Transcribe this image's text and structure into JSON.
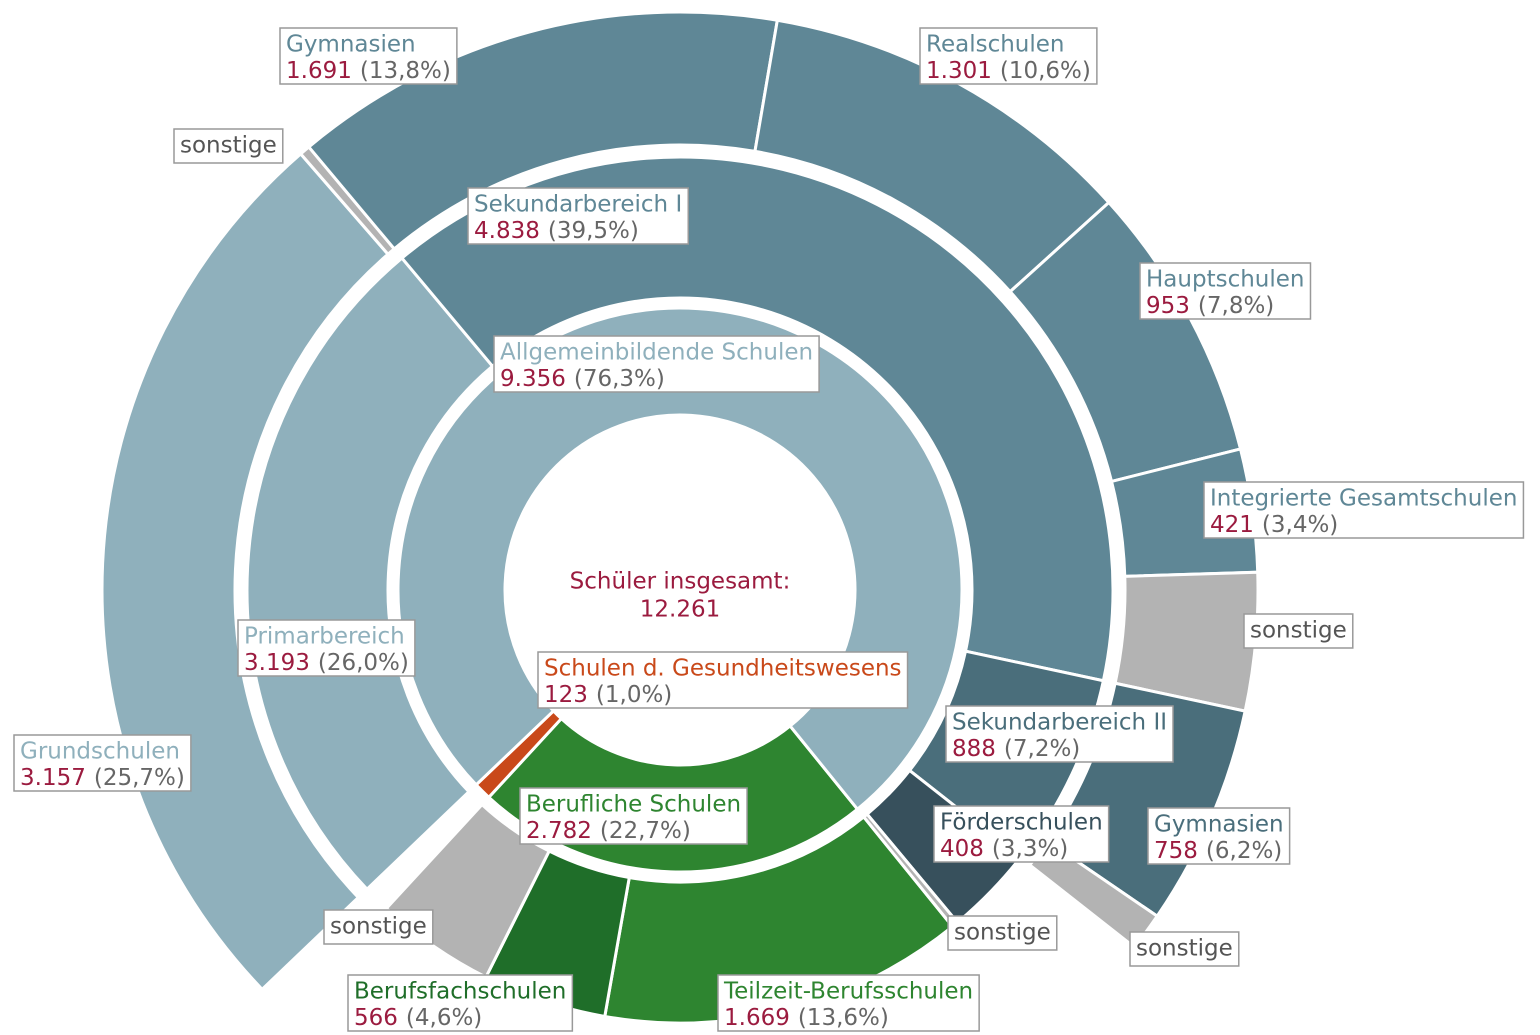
{
  "chart_data": {
    "type": "sunburst",
    "center_label": "Schüler insgesamt:",
    "total": 12261,
    "total_label": "12.261",
    "children": [
      {
        "name": "Berufliche Schulen",
        "value": 2782,
        "value_label": "2.782",
        "share": 22.7,
        "share_label": "(22,7%)",
        "color": "#2e8530",
        "children": [
          {
            "name": "Teilzeit-Berufsschulen",
            "value": 1669,
            "value_label": "1.669",
            "share": 13.6,
            "share_label": "(13,6%)",
            "color": "#2e8530"
          },
          {
            "name": "Berufsfachschulen",
            "value": 566,
            "share": 4.6,
            "share_label": "(4,6%)",
            "color": "#1f6e29"
          },
          {
            "name": "sonstige",
            "value": 547,
            "color": "#b3b3b3"
          }
        ]
      },
      {
        "name": "Schulen d. Gesundheitswesens",
        "value": 123,
        "share": 1.0,
        "share_label": "(1,0%)",
        "color": "#c9491a"
      },
      {
        "name": "Allgemeinbildende Schulen",
        "value": 9356,
        "value_label": "9.356",
        "share": 76.3,
        "share_label": "(76,3%)",
        "color": "#8fb0bc",
        "children": [
          {
            "name": "Primarbereich",
            "value": 3193,
            "value_label": "3.193",
            "share": 26.0,
            "share_label": "(26,0%)",
            "color": "#8fb0bc",
            "children": [
              {
                "name": "Grundschulen",
                "value": 3157,
                "value_label": "3.157",
                "share": 25.7,
                "share_label": "(25,7%)",
                "color": "#8fb0bc"
              },
              {
                "name": "sonstige",
                "value": 36,
                "color": "#b3b3b3"
              }
            ]
          },
          {
            "name": "Sekundarbereich I",
            "value": 4838,
            "value_label": "4.838",
            "share": 39.5,
            "share_label": "(39,5%)",
            "color": "#5f8796",
            "children": [
              {
                "name": "Gymnasien",
                "value": 1691,
                "value_label": "1.691",
                "share": 13.8,
                "share_label": "(13,8%)",
                "color": "#5f8796"
              },
              {
                "name": "Realschulen",
                "value": 1301,
                "value_label": "1.301",
                "share": 10.6,
                "share_label": "(10,6%)",
                "color": "#5f8796"
              },
              {
                "name": "Hauptschulen",
                "value": 953,
                "share": 7.8,
                "share_label": "(7,8%)",
                "color": "#5f8796"
              },
              {
                "name": "Integrierte Gesamtschulen",
                "value": 421,
                "share": 3.4,
                "share_label": "(3,4%)",
                "color": "#5f8796"
              },
              {
                "name": "sonstige",
                "value": 472,
                "color": "#b3b3b3"
              }
            ]
          },
          {
            "name": "Sekundarbereich II",
            "value": 888,
            "share": 7.2,
            "share_label": "(7,2%)",
            "color": "#4a6e7b",
            "children": [
              {
                "name": "Gymnasien",
                "value": 758,
                "share": 6.2,
                "share_label": "(6,2%)",
                "color": "#4a6e7b"
              },
              {
                "name": "sonstige",
                "value": 130,
                "color": "#b3b3b3"
              }
            ]
          },
          {
            "name": "Förderschulen",
            "value": 408,
            "share": 3.3,
            "share_label": "(3,3%)",
            "color": "#37505c"
          },
          {
            "name": "sonstige",
            "value": 29,
            "color": "#b3b3b3"
          }
        ]
      }
    ]
  }
}
